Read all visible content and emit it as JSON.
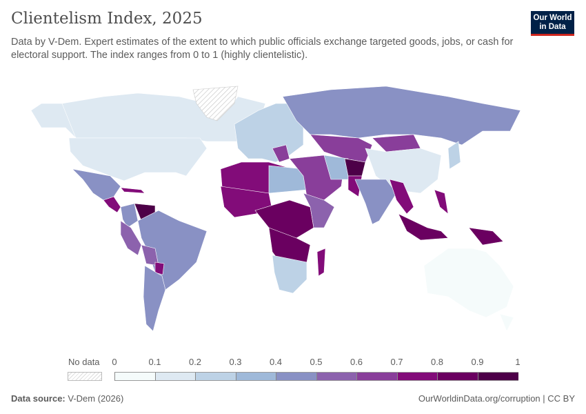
{
  "header": {
    "title": "Clientelism Index, 2025",
    "subtitle": "Data by V-Dem. Expert estimates of the extent to which public officials exchange targeted goods, jobs, or cash for electoral support. The index ranges from 0 to 1 (highly clientelistic).",
    "logo_text": "Our World in Data"
  },
  "legend": {
    "no_data_label": "No data",
    "ticks": [
      "0",
      "0.1",
      "0.2",
      "0.3",
      "0.4",
      "0.5",
      "0.6",
      "0.7",
      "0.8",
      "0.9",
      "1"
    ],
    "colors": [
      "#f5fbfb",
      "#dee9f2",
      "#bdd2e6",
      "#9fb9d9",
      "#8991c4",
      "#8c62ad",
      "#893e9a",
      "#820c79",
      "#6a0060",
      "#4d0048"
    ]
  },
  "footer": {
    "source_label": "Data source:",
    "source_value": "V-Dem (2026)",
    "link": "OurWorldinData.org/corruption | CC BY"
  }
}
